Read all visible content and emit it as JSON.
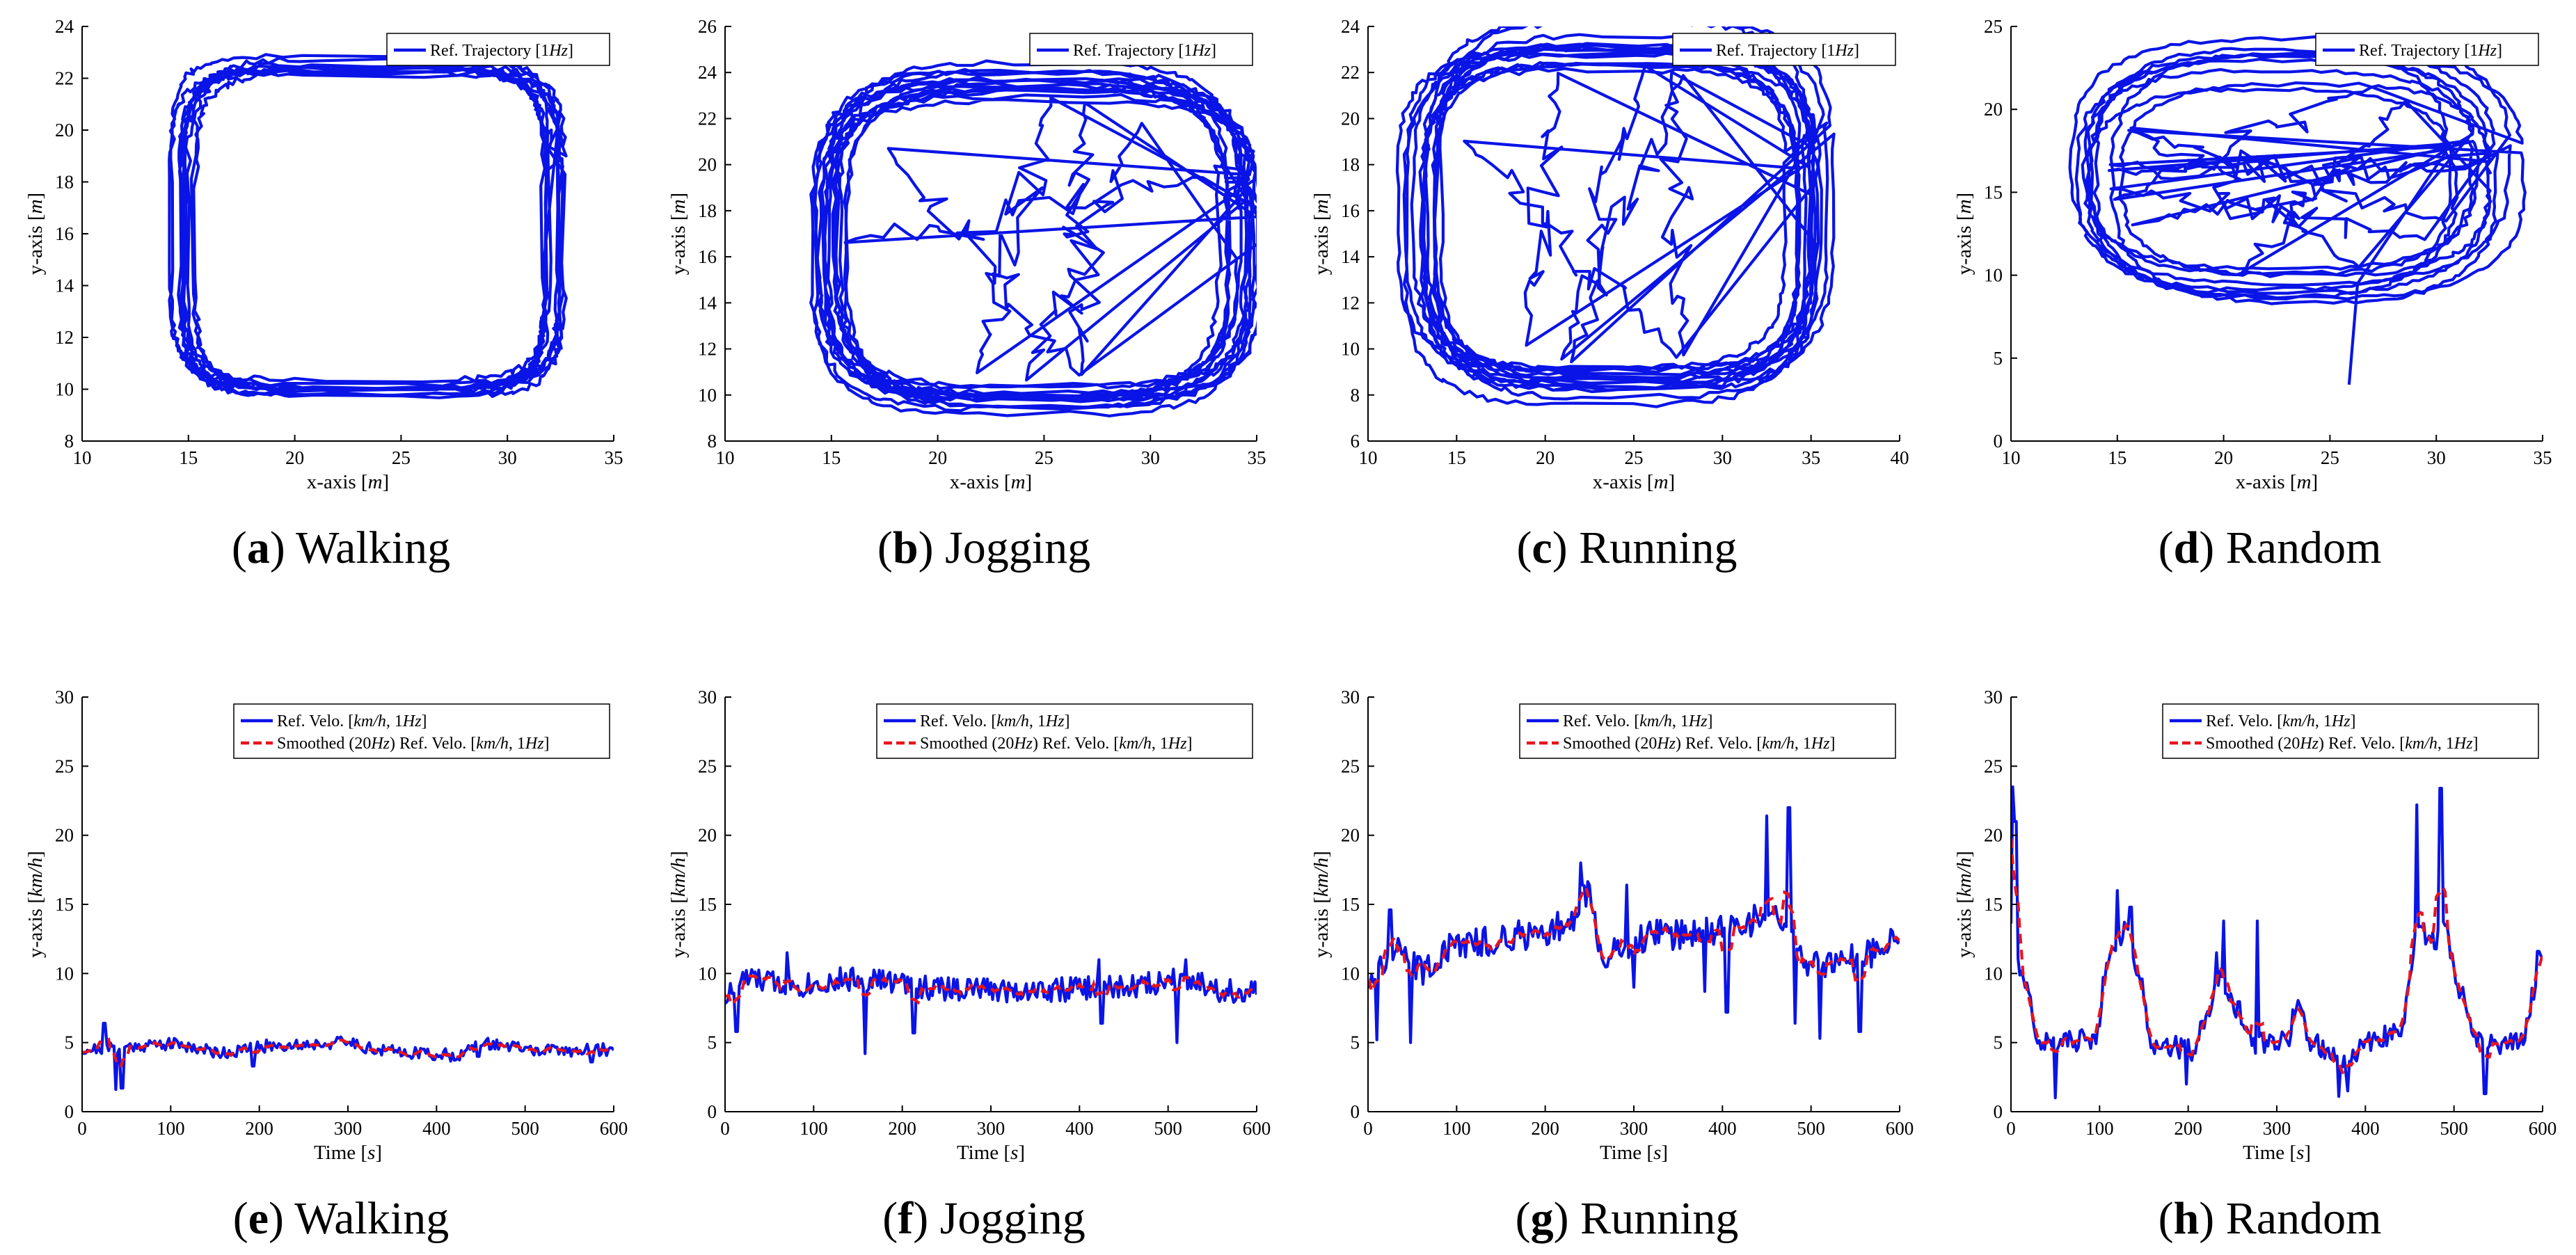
{
  "colors": {
    "ref": "#0a14e6",
    "smooth": "#e8141c",
    "axis": "#000000"
  },
  "chart_data": [
    {
      "type": "line",
      "panel": "a",
      "caption_letter": "a",
      "caption_text": "Walking",
      "xlabel": "x-axis",
      "xunit": "m",
      "ylabel": "y-axis",
      "yunit": "m",
      "xlim": [
        10,
        35
      ],
      "ylim": [
        8,
        24
      ],
      "xticks": [
        10,
        15,
        20,
        25,
        30,
        35
      ],
      "yticks": [
        8,
        10,
        12,
        14,
        16,
        18,
        20,
        22,
        24
      ],
      "legend": [
        "Ref. Trajectory [1Hz]"
      ],
      "legend_position": "top-right",
      "path": {
        "kind": "loops",
        "cx": 23.5,
        "cy": 16.2,
        "rx": 8.8,
        "ry": 6.3,
        "n": 10,
        "jitter": 0.05,
        "cross": 0,
        "seed": 3,
        "shape": 6
      }
    },
    {
      "type": "line",
      "panel": "b",
      "caption_letter": "b",
      "caption_text": "Jogging",
      "xlabel": "x-axis",
      "xunit": "m",
      "ylabel": "y-axis",
      "yunit": "m",
      "xlim": [
        10,
        35
      ],
      "ylim": [
        8,
        26
      ],
      "xticks": [
        10,
        15,
        20,
        25,
        30,
        35
      ],
      "yticks": [
        8,
        10,
        12,
        14,
        16,
        18,
        20,
        22,
        24,
        26
      ],
      "legend": [
        "Ref. Trajectory [1Hz]"
      ],
      "legend_position": "top-right",
      "path": {
        "kind": "loops",
        "cx": 24.5,
        "cy": 16.8,
        "rx": 9.8,
        "ry": 6.8,
        "n": 14,
        "jitter": 0.07,
        "cross": 5,
        "seed": 7,
        "shape": 4
      }
    },
    {
      "type": "line",
      "panel": "c",
      "caption_letter": "c",
      "caption_text": "Running",
      "xlabel": "x-axis",
      "xunit": "m",
      "ylabel": "y-axis",
      "yunit": "m",
      "xlim": [
        10,
        40
      ],
      "ylim": [
        6,
        24
      ],
      "xticks": [
        10,
        15,
        20,
        25,
        30,
        35,
        40
      ],
      "yticks": [
        6,
        8,
        10,
        12,
        14,
        16,
        18,
        20,
        22,
        24
      ],
      "legend": [
        "Ref. Trajectory [1Hz]"
      ],
      "legend_position": "top-right",
      "path": {
        "kind": "loops",
        "cx": 24.0,
        "cy": 15.8,
        "rx": 11.0,
        "ry": 7.3,
        "n": 14,
        "jitter": 0.08,
        "cross": 5,
        "seed": 11,
        "shape": 4
      }
    },
    {
      "type": "line",
      "panel": "d",
      "caption_letter": "d",
      "caption_text": "Random",
      "xlabel": "x-axis",
      "xunit": "m",
      "ylabel": "y-axis",
      "yunit": "m",
      "xlim": [
        10,
        35
      ],
      "ylim": [
        0,
        25
      ],
      "xticks": [
        10,
        15,
        20,
        25,
        30,
        35
      ],
      "yticks": [
        0,
        5,
        10,
        15,
        20,
        25
      ],
      "legend": [
        "Ref. Trajectory [1Hz]"
      ],
      "legend_position": "top-right",
      "path": {
        "kind": "loops",
        "cx": 23.0,
        "cy": 16.0,
        "rx": 9.3,
        "ry": 6.7,
        "n": 9,
        "jitter": 0.14,
        "cross": 8,
        "seed": 19,
        "shape": 3,
        "tail": [
          [
            26.3,
            9.5
          ],
          [
            25.9,
            3.4
          ]
        ]
      }
    },
    {
      "type": "line",
      "panel": "e",
      "caption_letter": "e",
      "caption_text": "Walking",
      "xlabel": "Time",
      "xunit": "s",
      "ylabel": "y-axis",
      "yunit": "km/h",
      "xlim": [
        0,
        600
      ],
      "ylim": [
        0,
        30
      ],
      "xticks": [
        0,
        100,
        200,
        300,
        400,
        500,
        600
      ],
      "yticks": [
        0,
        5,
        10,
        15,
        20,
        25,
        30
      ],
      "legend": [
        "Ref. Velo. [km/h, 1Hz]",
        "Smoothed (20Hz) Ref. Velo. [km/h, 1Hz]"
      ],
      "legend_position": "top-right",
      "series_profile": {
        "levels": [
          [
            0,
            4.5
          ],
          [
            100,
            4.9
          ],
          [
            160,
            4.3
          ],
          [
            220,
            4.8
          ],
          [
            300,
            5.0
          ],
          [
            340,
            4.4
          ],
          [
            420,
            4.1
          ],
          [
            460,
            4.9
          ],
          [
            520,
            4.4
          ],
          [
            600,
            4.5
          ]
        ],
        "noise": 0.45,
        "seed": 21,
        "spikes": [
          [
            25,
            6.4
          ],
          [
            38,
            1.6
          ],
          [
            45,
            1.7
          ],
          [
            193,
            3.3
          ],
          [
            447,
            4.0
          ],
          [
            575,
            3.6
          ]
        ]
      }
    },
    {
      "type": "line",
      "panel": "f",
      "caption_letter": "f",
      "caption_text": "Jogging",
      "xlabel": "Time",
      "xunit": "s",
      "ylabel": "y-axis",
      "yunit": "km/h",
      "xlim": [
        0,
        600
      ],
      "ylim": [
        0,
        30
      ],
      "xticks": [
        0,
        100,
        200,
        300,
        400,
        500,
        600
      ],
      "yticks": [
        0,
        5,
        10,
        15,
        20,
        25,
        30
      ],
      "legend": [
        "Ref. Velo. [km/h, 1Hz]",
        "Smoothed (20Hz) Ref. Velo. [km/h, 1Hz]"
      ],
      "legend_position": "top-right",
      "series_profile": {
        "levels": [
          [
            0,
            8.3
          ],
          [
            20,
            9.6
          ],
          [
            80,
            9.2
          ],
          [
            150,
            9.6
          ],
          [
            250,
            8.9
          ],
          [
            350,
            8.8
          ],
          [
            450,
            9.0
          ],
          [
            520,
            9.7
          ],
          [
            560,
            8.8
          ],
          [
            600,
            8.5
          ]
        ],
        "noise": 0.9,
        "seed": 33,
        "spikes": [
          [
            13,
            5.8
          ],
          [
            70,
            11.5
          ],
          [
            158,
            4.2
          ],
          [
            213,
            5.7
          ],
          [
            423,
            11.0
          ],
          [
            425,
            6.4
          ],
          [
            510,
            5.0
          ],
          [
            520,
            11.0
          ]
        ]
      }
    },
    {
      "type": "line",
      "panel": "g",
      "caption_letter": "g",
      "caption_text": "Running",
      "xlabel": "Time",
      "xunit": "s",
      "ylabel": "y-axis",
      "yunit": "km/h",
      "xlim": [
        0,
        600
      ],
      "ylim": [
        0,
        30
      ],
      "xticks": [
        0,
        100,
        200,
        300,
        400,
        500,
        600
      ],
      "yticks": [
        0,
        5,
        10,
        15,
        20,
        25,
        30
      ],
      "legend": [
        "Ref. Velo. [km/h, 1Hz]",
        "Smoothed (20Hz) Ref. Velo. [km/h, 1Hz]"
      ],
      "legend_position": "top-right",
      "series_profile": {
        "levels": [
          [
            0,
            9.5
          ],
          [
            30,
            11.5
          ],
          [
            60,
            10.3
          ],
          [
            100,
            12.0
          ],
          [
            180,
            12.8
          ],
          [
            230,
            13.5
          ],
          [
            245,
            16.0
          ],
          [
            265,
            11.5
          ],
          [
            330,
            12.8
          ],
          [
            420,
            13.2
          ],
          [
            450,
            14.5
          ],
          [
            480,
            13.0
          ],
          [
            500,
            10.5
          ],
          [
            550,
            11.0
          ],
          [
            600,
            12.5
          ]
        ],
        "noise": 1.1,
        "seed": 45,
        "spikes": [
          [
            10,
            5.2
          ],
          [
            25,
            14.6
          ],
          [
            48,
            5.0
          ],
          [
            240,
            18.0
          ],
          [
            292,
            16.4
          ],
          [
            300,
            9.0
          ],
          [
            380,
            8.7
          ],
          [
            405,
            7.2
          ],
          [
            450,
            21.4
          ],
          [
            475,
            22.0
          ],
          [
            482,
            6.4
          ],
          [
            510,
            5.3
          ],
          [
            555,
            5.8
          ],
          [
            590,
            13.2
          ]
        ]
      }
    },
    {
      "type": "line",
      "panel": "h",
      "caption_letter": "h",
      "caption_text": "Random",
      "xlabel": "Time",
      "xunit": "s",
      "ylabel": "y-axis",
      "yunit": "km/h",
      "xlim": [
        0,
        600
      ],
      "ylim": [
        0,
        30
      ],
      "xticks": [
        0,
        100,
        200,
        300,
        400,
        500,
        600
      ],
      "yticks": [
        0,
        5,
        10,
        15,
        20,
        25,
        30
      ],
      "legend": [
        "Ref. Velo. [km/h, 1Hz]",
        "Smoothed (20Hz) Ref. Velo. [km/h, 1Hz]"
      ],
      "legend_position": "top-right",
      "series_profile": {
        "levels": [
          [
            0,
            14.0
          ],
          [
            15,
            9.0
          ],
          [
            35,
            5.0
          ],
          [
            95,
            5.2
          ],
          [
            110,
            11.5
          ],
          [
            130,
            13.0
          ],
          [
            145,
            10.0
          ],
          [
            160,
            5.0
          ],
          [
            205,
            4.5
          ],
          [
            220,
            6.5
          ],
          [
            235,
            9.5
          ],
          [
            255,
            7.5
          ],
          [
            270,
            5.0
          ],
          [
            310,
            5.0
          ],
          [
            323,
            7.5
          ],
          [
            340,
            5.0
          ],
          [
            375,
            3.5
          ],
          [
            405,
            5.0
          ],
          [
            440,
            6.0
          ],
          [
            460,
            13.0
          ],
          [
            480,
            12.5
          ],
          [
            490,
            13.5
          ],
          [
            505,
            9.0
          ],
          [
            525,
            5.0
          ],
          [
            575,
            5.0
          ],
          [
            600,
            11.0
          ]
        ],
        "noise": 0.8,
        "seed": 57,
        "spikes": [
          [
            2,
            23.5
          ],
          [
            5,
            21.0
          ],
          [
            50,
            1.0
          ],
          [
            120,
            16.0
          ],
          [
            135,
            14.8
          ],
          [
            198,
            2.0
          ],
          [
            232,
            11.5
          ],
          [
            240,
            13.8
          ],
          [
            278,
            13.8
          ],
          [
            370,
            1.1
          ],
          [
            380,
            1.5
          ],
          [
            458,
            22.2
          ],
          [
            485,
            23.4
          ],
          [
            535,
            1.3
          ],
          [
            595,
            11.6
          ]
        ]
      }
    }
  ]
}
